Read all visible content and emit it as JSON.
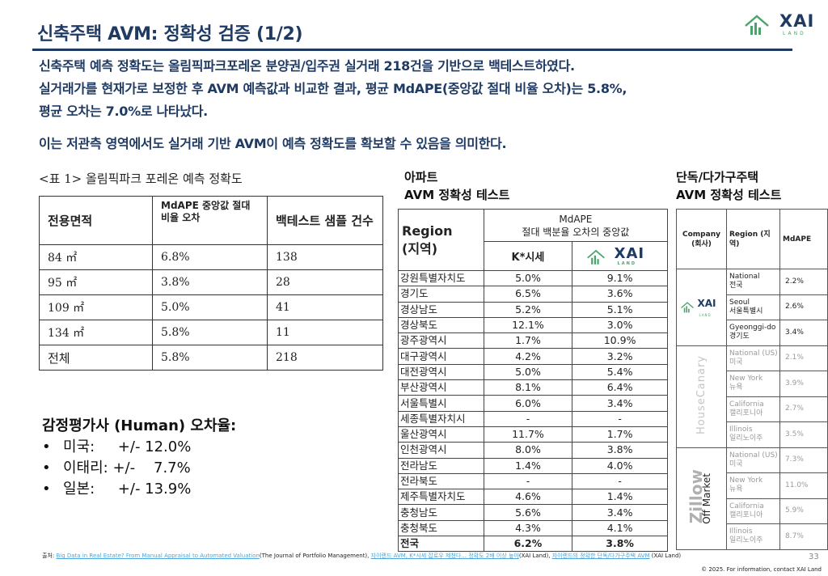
{
  "header": {
    "title": "신축주택 AVM: 정확성 검증 (1/2)",
    "logo_text": "XAI",
    "logo_sub": "LAND"
  },
  "intro": {
    "line1": "신축주택 예측 정확도는 올림픽파크포레온 분양권/입주권 실거래 218건을 기반으로 백테스트하였다.",
    "line2": "실거래가를 현재가로 보정한 후 AVM 예측값과 비교한 결과, 평균 MdAPE(중앙값 절대 비율 오차)는 5.8%,",
    "line3": "평균 오차는 7.0%로 나타났다.",
    "line4": "이는 저관측 영역에서도 실거래 기반 AVM이 예측 정확도를 확보할 수 있음을 의미한다."
  },
  "table1": {
    "caption": "<표 1>  올림픽파크 포레온 예측 정확도",
    "headers": [
      "전용면적",
      "MdAPE 중앙값 절대 비율 오차",
      "백테스트 샘플 건수"
    ],
    "rows": [
      [
        "84 ㎡",
        "6.8%",
        "138"
      ],
      [
        "95 ㎡",
        "3.8%",
        "28"
      ],
      [
        "109 ㎡",
        "5.0%",
        "41"
      ],
      [
        "134 ㎡",
        "5.8%",
        "11"
      ],
      [
        "전체",
        "5.8%",
        "218"
      ]
    ]
  },
  "human": {
    "title": "감정평가사 (Human) 오차율:",
    "items": [
      "미국:     +/- 12.0%",
      "이태리: +/-    7.7%",
      "일본:     +/- 13.9%"
    ]
  },
  "apartment": {
    "heading1": "아파트",
    "heading2": "AVM 정확성 테스트",
    "region_header": "Region",
    "region_header_ko": "(지역)",
    "mdape_header": "MdAPE",
    "mdape_sub": "절대 백분율 오차의 중앙값",
    "col_k": "K*시세",
    "col_xai": "XAI",
    "rows": [
      [
        "강원특별자치도",
        "5.0%",
        "9.1%"
      ],
      [
        "경기도",
        "6.5%",
        "3.6%"
      ],
      [
        "경상남도",
        "5.2%",
        "5.1%"
      ],
      [
        "경상북도",
        "12.1%",
        "3.0%"
      ],
      [
        "광주광역시",
        "1.7%",
        "10.9%"
      ],
      [
        "대구광역시",
        "4.2%",
        "3.2%"
      ],
      [
        "대전광역시",
        "5.0%",
        "5.4%"
      ],
      [
        "부산광역시",
        "8.1%",
        "6.4%"
      ],
      [
        "서울특별시",
        "6.0%",
        "3.4%"
      ],
      [
        "세종특별자치시",
        "-",
        "-"
      ],
      [
        "울산광역시",
        "11.7%",
        "1.7%"
      ],
      [
        "인천광역시",
        "8.0%",
        "3.8%"
      ],
      [
        "전라남도",
        "1.4%",
        "4.0%"
      ],
      [
        "전라북도",
        "-",
        "-"
      ],
      [
        "제주특별자치도",
        "4.6%",
        "1.4%"
      ],
      [
        "충청남도",
        "5.6%",
        "3.4%"
      ],
      [
        "충청북도",
        "4.3%",
        "4.1%"
      ]
    ],
    "total": [
      "전국",
      "6.2%",
      "3.8%"
    ]
  },
  "detached": {
    "heading1": "단독/다가구주택",
    "heading2": "AVM 정확성 테스트",
    "col_company": "Company (회사)",
    "col_region": "Region (지역)",
    "col_mdape": "MdAPE",
    "groups": [
      {
        "company": "XAI",
        "rows": [
          [
            "National",
            "전국",
            "2.2%"
          ],
          [
            "Seoul",
            "서울특별시",
            "2.6%"
          ],
          [
            "Gyeonggi-do",
            "경기도",
            "3.4%"
          ]
        ]
      },
      {
        "company": "HouseCanary",
        "rows": [
          [
            "National (US)",
            "미국",
            "2.1%"
          ],
          [
            "New York",
            "뉴욕",
            "3.9%"
          ],
          [
            "California",
            "캘리포니아",
            "2.7%"
          ],
          [
            "Illinois",
            "일리노이주",
            "3.5%"
          ]
        ]
      },
      {
        "company": "Zillow",
        "company_sub": "Off Market",
        "rows": [
          [
            "National (US)",
            "미국",
            "7.3%"
          ],
          [
            "New York",
            "뉴욕",
            "11.0%"
          ],
          [
            "California",
            "캘리포니아",
            "5.9%"
          ],
          [
            "Illinois",
            "일리노이주",
            "8.7%"
          ]
        ]
      }
    ]
  },
  "footer": {
    "source_prefix": "출처: ",
    "link1": "Big Data in Real Estate? From Manual Appraisal to Automated Valuation",
    "text1": "(The Journal of Portfolio Management), ",
    "link2": "자이랜드 AVM, K*시세 잡로우 제쳤다... 정확도 2배 이상 높아",
    "text2": "(XAI Land), ",
    "link3": "자이랜드의 정확한 단독/다가구주택 AVM",
    "text3": " (XAI Land)",
    "copyright": "© 2025. For information, contact XAI Land",
    "page_number": "33"
  },
  "colors": {
    "navy": "#1f3b64",
    "green": "#4aa36a",
    "link": "#4da6d8"
  }
}
